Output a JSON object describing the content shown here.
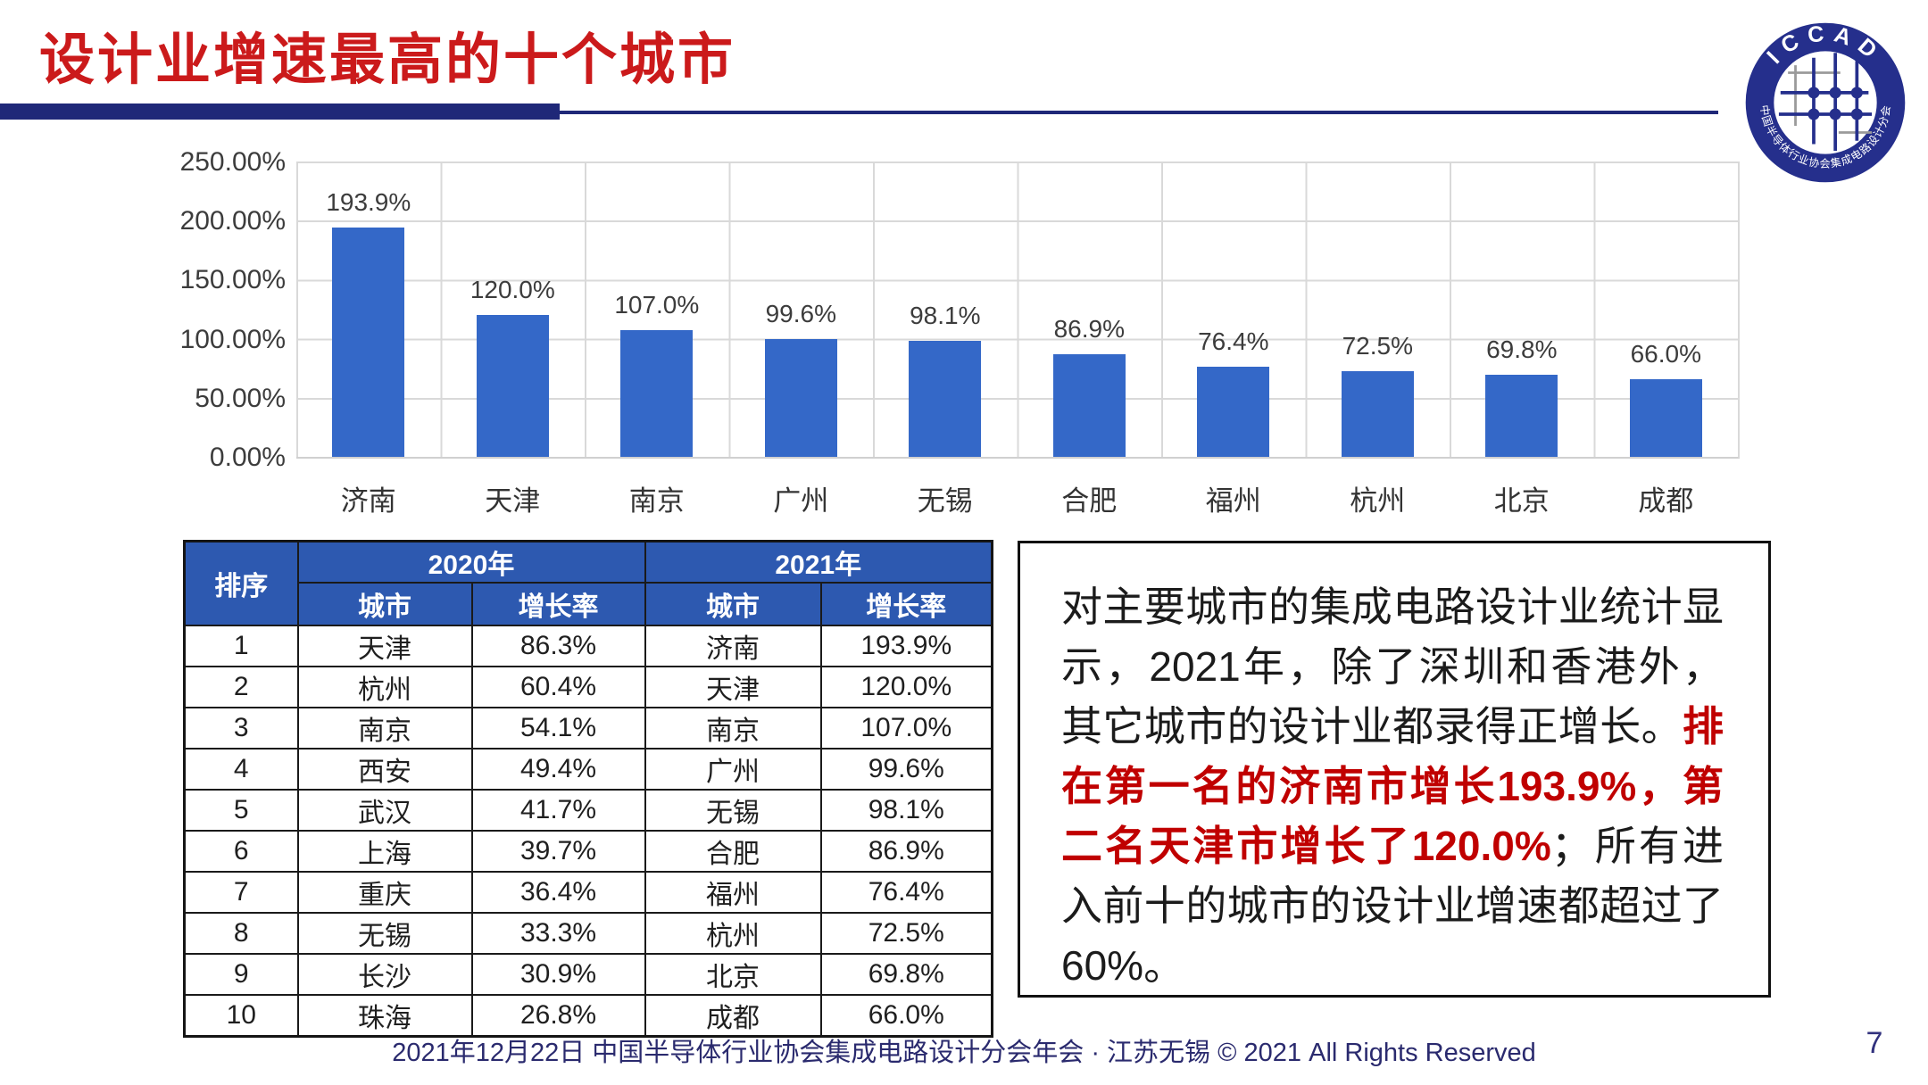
{
  "slide": {
    "title": "设计业增速最高的十个城市",
    "footer": "2021年12月22日 中国半导体行业协会集成电路设计分会年会 · 江苏无锡 © 2021 All Rights Reserved",
    "page_number": "7"
  },
  "logo": {
    "top_text": "ICCAD",
    "bottom_text": "中国半导体行业协会集成电路设计分会"
  },
  "chart_data": {
    "type": "bar",
    "title": "",
    "xlabel": "",
    "ylabel": "",
    "categories": [
      "济南",
      "天津",
      "南京",
      "广州",
      "无锡",
      "合肥",
      "福州",
      "杭州",
      "北京",
      "成都"
    ],
    "values": [
      193.9,
      120.0,
      107.0,
      99.6,
      98.1,
      86.9,
      76.4,
      72.5,
      69.8,
      66.0
    ],
    "labels": [
      "193.9%",
      "120.0%",
      "107.0%",
      "99.6%",
      "98.1%",
      "86.9%",
      "76.4%",
      "72.5%",
      "69.8%",
      "66.0%"
    ],
    "y_ticks": [
      "250.00%",
      "200.00%",
      "150.00%",
      "100.00%",
      "50.00%",
      "0.00%"
    ],
    "ylim": [
      0,
      250
    ],
    "grid": true,
    "legend": false,
    "bar_color": "#3468C8"
  },
  "table": {
    "rank_header": "排序",
    "year_2020": "2020年",
    "year_2021": "2021年",
    "city_header_2020": "城市",
    "growth_header_2020": "增长率",
    "city_header_2021": "城市",
    "growth_header_2021": "增长率",
    "rows": [
      {
        "rank": "1",
        "city_2020": "天津",
        "growth_2020": "86.3%",
        "city_2021": "济南",
        "growth_2021": "193.9%"
      },
      {
        "rank": "2",
        "city_2020": "杭州",
        "growth_2020": "60.4%",
        "city_2021": "天津",
        "growth_2021": "120.0%"
      },
      {
        "rank": "3",
        "city_2020": "南京",
        "growth_2020": "54.1%",
        "city_2021": "南京",
        "growth_2021": "107.0%"
      },
      {
        "rank": "4",
        "city_2020": "西安",
        "growth_2020": "49.4%",
        "city_2021": "广州",
        "growth_2021": "99.6%"
      },
      {
        "rank": "5",
        "city_2020": "武汉",
        "growth_2020": "41.7%",
        "city_2021": "无锡",
        "growth_2021": "98.1%"
      },
      {
        "rank": "6",
        "city_2020": "上海",
        "growth_2020": "39.7%",
        "city_2021": "合肥",
        "growth_2021": "86.9%"
      },
      {
        "rank": "7",
        "city_2020": "重庆",
        "growth_2020": "36.4%",
        "city_2021": "福州",
        "growth_2021": "76.4%"
      },
      {
        "rank": "8",
        "city_2020": "无锡",
        "growth_2020": "33.3%",
        "city_2021": "杭州",
        "growth_2021": "72.5%"
      },
      {
        "rank": "9",
        "city_2020": "长沙",
        "growth_2020": "30.9%",
        "city_2021": "北京",
        "growth_2021": "69.8%"
      },
      {
        "rank": "10",
        "city_2020": "珠海",
        "growth_2020": "26.8%",
        "city_2021": "成都",
        "growth_2021": "66.0%"
      }
    ]
  },
  "textbox": {
    "black_part1": "对主要城市的集成电路设计业统计显示，2021年，除了深圳和香港外，其它城市的设计业都录得正增长。",
    "red_part": "排在第一名的济南市增长193.9%，第二名天津市增长了120.0%",
    "black_part2": "；所有进入前十的城市的设计业增速都超过了60%。"
  },
  "colors": {
    "title_red": "#CB1A1B",
    "textbox_red": "#C00000",
    "navy_rule": "#1F2878",
    "table_header_blue": "#2D59B0",
    "bar_blue": "#3468C8",
    "grid_gray": "#D9D9D9",
    "footer_navy": "#2A2A6E"
  }
}
